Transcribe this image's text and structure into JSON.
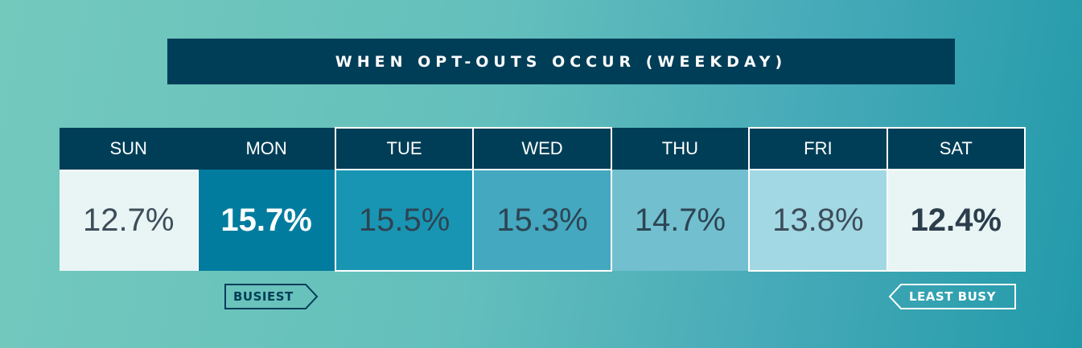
{
  "title": "WHEN OPT-OUTS OCCUR (WEEKDAY)",
  "chart_data": {
    "type": "table",
    "title": "WHEN OPT-OUTS OCCUR (WEEKDAY)",
    "categories": [
      "SUN",
      "MON",
      "TUE",
      "WED",
      "THU",
      "FRI",
      "SAT"
    ],
    "values": [
      12.7,
      15.7,
      15.5,
      15.3,
      14.7,
      13.8,
      12.4
    ],
    "labels": [
      "12.7%",
      "15.7%",
      "15.5%",
      "15.3%",
      "14.7%",
      "13.8%",
      "12.4%"
    ],
    "unit": "%",
    "highlighted": [
      "MON",
      "SAT"
    ],
    "cell_colors": [
      "#e8f5f4",
      "#017c9e",
      "#1995b4",
      "#43a8c0",
      "#72bfcf",
      "#a2d8e4",
      "#e8f5f4"
    ],
    "text_colors": [
      "#3d4d5a",
      "#ffffff",
      "#2d4452",
      "#2d4452",
      "#2d4452",
      "#3d4d5a",
      "#2c3d4c"
    ],
    "scale": {
      "start_label": "BUSIEST",
      "end_label": "LEAST BUSY"
    }
  },
  "colors": {
    "header_bg": "#003e57",
    "header_text": "#ffffff",
    "border": "#ffffff"
  }
}
